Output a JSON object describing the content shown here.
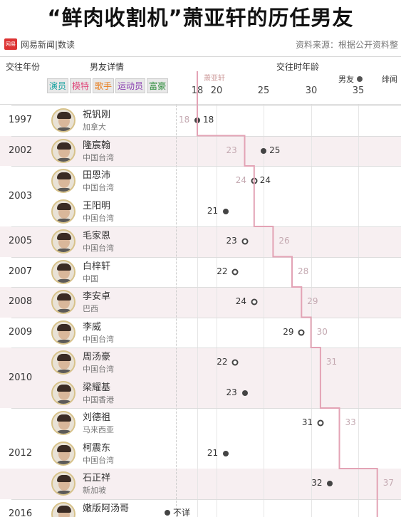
{
  "title": "“鲜肉收割机”萧亚轩的历任男友",
  "brand": {
    "logo_text": "网易",
    "name": "网易新闻|数读"
  },
  "source": "资料来源：根据公开资料整",
  "headers": {
    "year": "交往年份",
    "detail": "男友详情",
    "age": "交往时年龄"
  },
  "legend": {
    "boyfriend": "男友",
    "rumor": "绯闻"
  },
  "tags": [
    "演员",
    "模特",
    "歌手",
    "运动员",
    "富豪"
  ],
  "xiao_label": "萧亚轩",
  "ticks": [
    "18",
    "20",
    "25",
    "30",
    "35"
  ],
  "colors": {
    "line": "#e3a3b5",
    "band": "#f7eff1",
    "avatar_ring": "#d7c28a"
  },
  "rows": [
    {
      "year": "1997",
      "name": "祝钒刚",
      "place": "加拿大",
      "bf_age": 18,
      "xiao_age": 18,
      "open": false
    },
    {
      "year": "2002",
      "name": "隆宸翰",
      "place": "中国台湾",
      "bf_age": 25,
      "xiao_age": 23,
      "open": false
    },
    {
      "year": "2003",
      "name": "田恩沛",
      "place": "中国台湾",
      "bf_age": 24,
      "xiao_age": 24,
      "open": true
    },
    {
      "year": "",
      "name": "王阳明",
      "place": "中国台湾",
      "bf_age": 21,
      "xiao_age": null,
      "open": false
    },
    {
      "year": "2005",
      "name": "毛家恩",
      "place": "中国台湾",
      "bf_age": 23,
      "xiao_age": 26,
      "open": true
    },
    {
      "year": "2007",
      "name": "白梓轩",
      "place": "中国",
      "bf_age": 22,
      "xiao_age": 28,
      "open": true
    },
    {
      "year": "2008",
      "name": "李安卓",
      "place": "巴西",
      "bf_age": 24,
      "xiao_age": 29,
      "open": true
    },
    {
      "year": "2009",
      "name": "李威",
      "place": "中国台湾",
      "bf_age": 29,
      "xiao_age": 30,
      "open": true
    },
    {
      "year": "2010",
      "name": "周汤豪",
      "place": "中国台湾",
      "bf_age": 22,
      "xiao_age": 31,
      "open": true
    },
    {
      "year": "",
      "name": "梁耀基",
      "place": "中国香港",
      "bf_age": 23,
      "xiao_age": null,
      "open": false
    },
    {
      "year": "2012",
      "name": "刘德祖",
      "place": "马来西亚",
      "bf_age": 31,
      "xiao_age": 33,
      "open": true
    },
    {
      "year": "",
      "name": "柯震东",
      "place": "中国台湾",
      "bf_age": 21,
      "xiao_age": null,
      "open": false
    },
    {
      "year": "",
      "name": "石正祥",
      "place": "新加坡",
      "bf_age": 32,
      "xiao_age": 37,
      "open": false
    },
    {
      "year": "2016",
      "name": "嫩版阿汤哥",
      "place": "",
      "bf_age": null,
      "xiao_age": null,
      "open": false
    }
  ],
  "unknown_label": "不详"
}
